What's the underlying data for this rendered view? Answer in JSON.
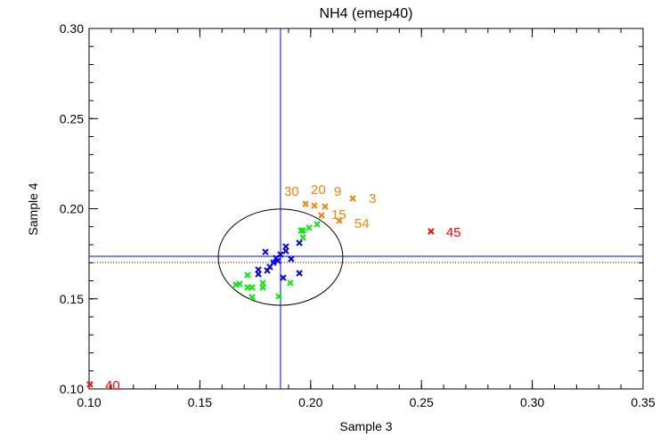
{
  "chart_data": {
    "type": "scatter",
    "title": "NH4 (emep40)",
    "xlabel": "Sample 3",
    "ylabel": "Sample 4",
    "xlim": [
      0.1,
      0.35
    ],
    "ylim": [
      0.1,
      0.3
    ],
    "xticks": [
      "0.10",
      "0.15",
      "0.20",
      "0.25",
      "0.30",
      "0.35"
    ],
    "yticks": [
      "0.10",
      "0.15",
      "0.20",
      "0.25",
      "0.30"
    ],
    "xtick_values": [
      0.1,
      0.15,
      0.2,
      0.25,
      0.3,
      0.35
    ],
    "ytick_values": [
      0.1,
      0.15,
      0.2,
      0.25,
      0.3
    ],
    "minor_step": 0.01,
    "grid": false,
    "reference_lines": {
      "vertical_x": 0.1864,
      "horizontal_y": 0.1736,
      "dotted_horizontal_y": 0.1701,
      "color": "#0000ff"
    },
    "ellipse": {
      "cx": 0.1864,
      "cy": 0.1731,
      "rx": 0.0281,
      "ry": 0.0267,
      "color": "#000000"
    },
    "series": [
      {
        "name": "green",
        "color": "#00ee00",
        "points": [
          [
            0.2029,
            0.1914
          ],
          [
            0.1993,
            0.1894
          ],
          [
            0.1965,
            0.1879
          ],
          [
            0.1957,
            0.1879
          ],
          [
            0.1965,
            0.184
          ],
          [
            0.1715,
            0.1632
          ],
          [
            0.1663,
            0.1578
          ],
          [
            0.1679,
            0.1583
          ],
          [
            0.1715,
            0.1563
          ],
          [
            0.1736,
            0.1563
          ],
          [
            0.1784,
            0.1588
          ],
          [
            0.1784,
            0.1563
          ],
          [
            0.1908,
            0.1588
          ],
          [
            0.1736,
            0.1509
          ],
          [
            0.1856,
            0.1514
          ]
        ]
      },
      {
        "name": "blue",
        "color": "#0000ff",
        "points": [
          [
            0.1796,
            0.176
          ],
          [
            0.1888,
            0.179
          ],
          [
            0.1888,
            0.1765
          ],
          [
            0.1949,
            0.181
          ],
          [
            0.1844,
            0.1726
          ],
          [
            0.1832,
            0.1701
          ],
          [
            0.1816,
            0.1677
          ],
          [
            0.1764,
            0.1662
          ],
          [
            0.1764,
            0.1637
          ],
          [
            0.1804,
            0.1657
          ],
          [
            0.1876,
            0.1617
          ],
          [
            0.1949,
            0.1642
          ],
          [
            0.1912,
            0.1721
          ],
          [
            0.1864,
            0.1746
          ],
          [
            0.1852,
            0.1711
          ]
        ]
      },
      {
        "name": "orange",
        "color": "#ff7f00",
        "points": [
          [
            0.1977,
            0.2027,
            "30"
          ],
          [
            0.2017,
            0.2017,
            "20"
          ],
          [
            0.2065,
            0.2012,
            "9"
          ],
          [
            0.2049,
            0.1963,
            "15"
          ],
          [
            0.2129,
            0.1933,
            "54"
          ],
          [
            0.219,
            0.2057,
            "3"
          ]
        ]
      },
      {
        "name": "red",
        "color": "#ff0000",
        "points": [
          [
            0.2543,
            0.1874,
            "45"
          ],
          [
            0.1004,
            0.1025,
            "40"
          ]
        ]
      }
    ]
  }
}
